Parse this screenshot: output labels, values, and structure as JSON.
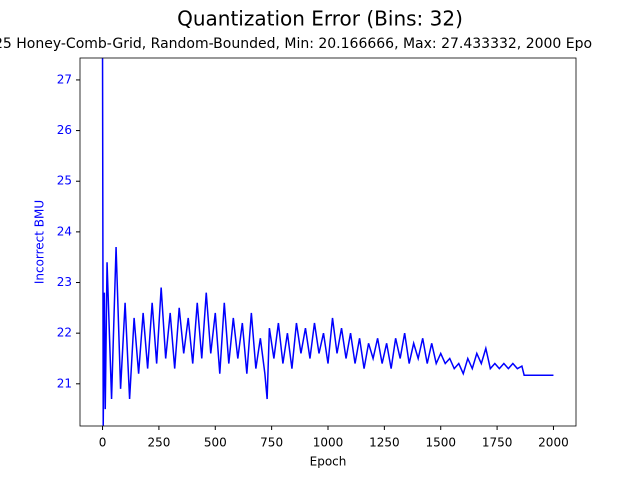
{
  "chart_data": {
    "type": "line",
    "title": "Quantization Error (Bins: 32)",
    "subtitle": "25 Honey-Comb-Grid, Random-Bounded, Min: 20.166666, Max: 27.433332, 2000 Epo",
    "x_label": "Epoch",
    "y_label": "Incorrect BMU",
    "xlim": [
      -100,
      2100
    ],
    "ylim": [
      20.167,
      27.433
    ],
    "xticks": [
      0,
      250,
      500,
      750,
      1000,
      1250,
      1500,
      1750,
      2000
    ],
    "yticks": [
      21,
      22,
      23,
      24,
      25,
      26,
      27
    ],
    "label_color": "#0000ff",
    "series": [
      {
        "name": "Incorrect BMU",
        "color": "#0000ff",
        "x": [
          0,
          3,
          8,
          12,
          20,
          40,
          60,
          80,
          100,
          120,
          140,
          160,
          180,
          200,
          220,
          240,
          260,
          280,
          300,
          320,
          340,
          360,
          380,
          400,
          420,
          440,
          460,
          480,
          500,
          520,
          540,
          560,
          580,
          600,
          620,
          640,
          660,
          680,
          700,
          720,
          730,
          740,
          760,
          780,
          800,
          820,
          840,
          860,
          880,
          900,
          920,
          940,
          960,
          980,
          1000,
          1020,
          1040,
          1060,
          1080,
          1100,
          1120,
          1140,
          1160,
          1180,
          1200,
          1220,
          1240,
          1260,
          1280,
          1300,
          1320,
          1340,
          1360,
          1380,
          1400,
          1420,
          1440,
          1460,
          1480,
          1500,
          1520,
          1540,
          1560,
          1580,
          1600,
          1620,
          1640,
          1660,
          1680,
          1700,
          1720,
          1740,
          1760,
          1780,
          1800,
          1820,
          1840,
          1860,
          1870,
          2000
        ],
        "values": [
          27.43,
          20.17,
          22.8,
          20.5,
          23.4,
          20.7,
          23.7,
          20.9,
          22.6,
          20.7,
          22.3,
          21.2,
          22.4,
          21.3,
          22.6,
          21.4,
          22.9,
          21.5,
          22.4,
          21.3,
          22.5,
          21.6,
          22.3,
          21.4,
          22.6,
          21.5,
          22.8,
          21.6,
          22.4,
          21.2,
          22.6,
          21.4,
          22.3,
          21.5,
          22.2,
          21.2,
          22.4,
          21.3,
          21.9,
          21.2,
          20.7,
          22.1,
          21.5,
          22.2,
          21.4,
          22.0,
          21.3,
          22.2,
          21.6,
          22.1,
          21.5,
          22.2,
          21.6,
          22.0,
          21.4,
          22.3,
          21.6,
          22.1,
          21.5,
          22.0,
          21.4,
          21.9,
          21.3,
          21.8,
          21.5,
          21.9,
          21.4,
          21.8,
          21.3,
          21.9,
          21.5,
          22.0,
          21.4,
          21.8,
          21.5,
          21.9,
          21.4,
          21.8,
          21.4,
          21.6,
          21.4,
          21.5,
          21.3,
          21.4,
          21.2,
          21.5,
          21.3,
          21.6,
          21.4,
          21.7,
          21.3,
          21.4,
          21.3,
          21.4,
          21.3,
          21.4,
          21.3,
          21.35,
          21.17,
          21.17
        ]
      }
    ]
  }
}
